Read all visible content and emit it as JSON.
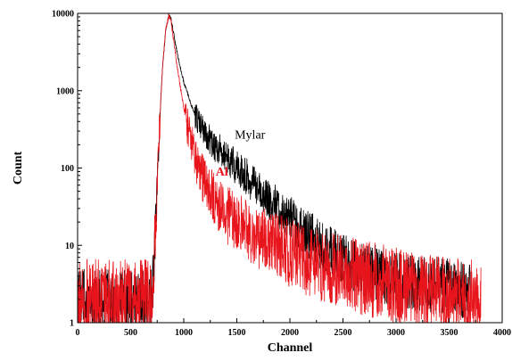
{
  "chart_data": {
    "type": "line",
    "title": "",
    "xlabel": "Channel",
    "ylabel": "Count",
    "xlim": [
      0,
      4000
    ],
    "ylim": [
      1,
      10000
    ],
    "yscale": "log",
    "grid": false,
    "x_ticks": [
      0,
      500,
      1000,
      1500,
      2000,
      2500,
      3000,
      3500,
      4000
    ],
    "x_tick_labels": [
      "0",
      "500",
      "1000",
      "1500",
      "2000",
      "2500",
      "3000",
      "3500",
      "4000"
    ],
    "y_ticks": [
      1,
      10,
      100,
      1000,
      10000
    ],
    "y_tick_labels": [
      "1",
      "10",
      "100",
      "1000",
      "10000"
    ],
    "colors": {
      "Mylar": "#000000",
      "Al": "#e8141b"
    },
    "series": [
      {
        "name": "Mylar",
        "color": "#000000",
        "noise": 0.3,
        "x": [
          0,
          100,
          300,
          500,
          700,
          720,
          750,
          780,
          800,
          830,
          860,
          880,
          900,
          930,
          960,
          1000,
          1050,
          1100,
          1200,
          1300,
          1400,
          1500,
          1600,
          1700,
          1800,
          1900,
          2000,
          2100,
          2200,
          2300,
          2400,
          2500,
          2600,
          2700,
          2800,
          2900,
          3000,
          3200,
          3400,
          3600,
          3700
        ],
        "y": [
          2,
          2,
          2,
          2,
          2,
          6,
          60,
          600,
          2000,
          6000,
          9500,
          8500,
          6000,
          3500,
          2200,
          1300,
          800,
          500,
          280,
          190,
          140,
          100,
          75,
          55,
          40,
          30,
          22,
          17,
          13,
          10,
          8,
          6.5,
          5.5,
          5,
          4.5,
          4,
          3.5,
          3.2,
          3,
          2.8,
          2.5
        ]
      },
      {
        "name": "Al",
        "color": "#e8141b",
        "noise": 0.4,
        "x": [
          0,
          100,
          300,
          500,
          700,
          720,
          750,
          780,
          800,
          830,
          860,
          880,
          900,
          930,
          960,
          1000,
          1050,
          1100,
          1150,
          1200,
          1300,
          1400,
          1500,
          1600,
          1800,
          2000,
          2200,
          2500,
          2800,
          3000,
          3200,
          3500,
          3700,
          3800
        ],
        "y": [
          2,
          2,
          2,
          2,
          2,
          6,
          60,
          600,
          2000,
          6000,
          9500,
          8000,
          5000,
          2500,
          1300,
          600,
          280,
          150,
          90,
          60,
          35,
          25,
          20,
          16,
          11,
          8,
          6,
          4.5,
          3.5,
          3,
          2.5,
          2.2,
          2,
          2
        ]
      }
    ],
    "annotations": [
      {
        "text": "Mylar",
        "series": "Mylar",
        "x": 1480,
        "y": 240
      },
      {
        "text": "Al",
        "series": "Al",
        "x": 1300,
        "y": 80
      }
    ]
  }
}
